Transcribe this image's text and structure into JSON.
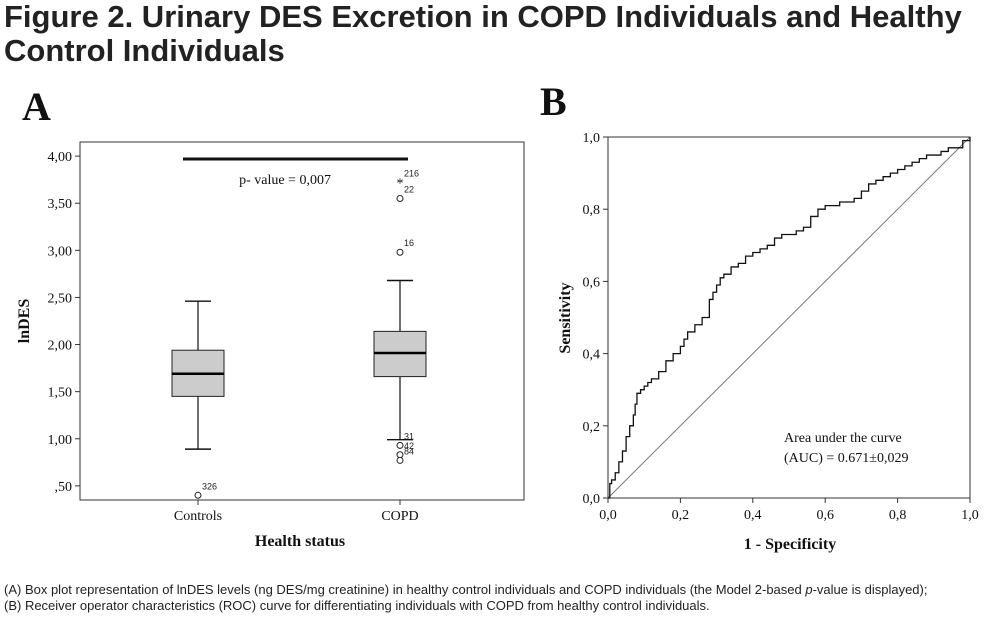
{
  "figure": {
    "title": "Figure 2. Urinary DES Excretion in COPD Individuals and Healthy Control Individuals",
    "caption_a_before": "(A) Box plot representation of lnDES levels (ng DES/mg creatinine) in healthy control individuals and COPD individuals (the Model 2-based ",
    "caption_a_italic": "p",
    "caption_a_after": "-value is displayed);",
    "caption_b": "(B) Receiver operator characteristics (ROC) curve for differentiating individuals with COPD from healthy control individuals."
  },
  "chart_data": [
    {
      "type": "box",
      "panel_label": "A",
      "xlabel": "Health status",
      "ylabel": "lnDES",
      "ylim": [
        0.35,
        4.15
      ],
      "yticks": [
        0.5,
        1.0,
        1.5,
        2.0,
        2.5,
        3.0,
        3.5,
        4.0
      ],
      "ytick_labels": [
        ",50",
        "1,00",
        "1,50",
        "2,00",
        "2,50",
        "3,00",
        "3,50",
        "4,00"
      ],
      "box_color": "#cccccc",
      "groups": [
        {
          "name": "Controls",
          "whisker_low": 0.89,
          "q1": 1.45,
          "median": 1.69,
          "q3": 1.94,
          "whisker_high": 2.46,
          "outliers": [
            {
              "value": 0.4,
              "label": "326",
              "marker": "circle"
            }
          ]
        },
        {
          "name": "COPD",
          "whisker_low": 0.99,
          "q1": 1.66,
          "median": 1.91,
          "q3": 2.14,
          "whisker_high": 2.68,
          "outliers": [
            {
              "value": 3.72,
              "label": "216",
              "marker": "star"
            },
            {
              "value": 3.55,
              "label": "22",
              "marker": "circle"
            },
            {
              "value": 2.98,
              "label": "16",
              "marker": "circle"
            },
            {
              "value": 0.93,
              "label": "31",
              "marker": "circle"
            },
            {
              "value": 0.83,
              "label": "42",
              "marker": "circle"
            },
            {
              "value": 0.77,
              "label": "84",
              "marker": "circle"
            }
          ]
        }
      ],
      "annotation": {
        "text": "p- value  = 0,007",
        "bar_value": 3.97
      }
    },
    {
      "type": "line",
      "panel_label": "B",
      "xlabel": "1 - Specificity",
      "ylabel": "Sensitivity",
      "xlim": [
        0,
        1
      ],
      "ylim": [
        0,
        1
      ],
      "ticks": [
        0,
        0.2,
        0.4,
        0.6,
        0.8,
        1.0
      ],
      "tick_labels": [
        "0,0",
        "0,2",
        "0,4",
        "0,6",
        "0,8",
        "1,0"
      ],
      "annotation_line1": "Area under the curve",
      "annotation_line2": "(AUC) = 0.671±0,029",
      "series": [
        {
          "role": "roc",
          "x": [
            0,
            0.005,
            0.01,
            0.02,
            0.03,
            0.04,
            0.05,
            0.06,
            0.07,
            0.075,
            0.08,
            0.09,
            0.1,
            0.11,
            0.12,
            0.14,
            0.16,
            0.18,
            0.2,
            0.21,
            0.22,
            0.24,
            0.26,
            0.28,
            0.29,
            0.3,
            0.31,
            0.32,
            0.34,
            0.36,
            0.38,
            0.4,
            0.42,
            0.44,
            0.46,
            0.48,
            0.5,
            0.52,
            0.54,
            0.56,
            0.58,
            0.6,
            0.62,
            0.64,
            0.66,
            0.68,
            0.7,
            0.72,
            0.74,
            0.76,
            0.78,
            0.8,
            0.82,
            0.84,
            0.86,
            0.88,
            0.9,
            0.92,
            0.94,
            0.96,
            0.98,
            1.0
          ],
          "y": [
            0,
            0.04,
            0.05,
            0.07,
            0.1,
            0.13,
            0.17,
            0.2,
            0.23,
            0.26,
            0.29,
            0.3,
            0.31,
            0.32,
            0.33,
            0.35,
            0.38,
            0.4,
            0.42,
            0.44,
            0.46,
            0.48,
            0.5,
            0.55,
            0.57,
            0.59,
            0.61,
            0.62,
            0.64,
            0.65,
            0.67,
            0.68,
            0.69,
            0.7,
            0.72,
            0.73,
            0.73,
            0.74,
            0.75,
            0.78,
            0.8,
            0.81,
            0.81,
            0.82,
            0.82,
            0.83,
            0.85,
            0.87,
            0.88,
            0.89,
            0.9,
            0.91,
            0.92,
            0.93,
            0.94,
            0.95,
            0.95,
            0.96,
            0.97,
            0.97,
            0.99,
            1.0
          ]
        },
        {
          "role": "reference",
          "x": [
            0,
            1
          ],
          "y": [
            0,
            1
          ]
        }
      ]
    }
  ]
}
